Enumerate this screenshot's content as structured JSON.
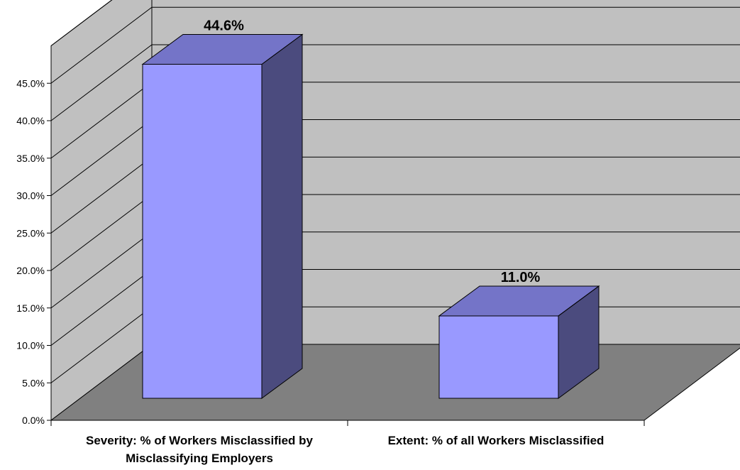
{
  "chart_data": {
    "type": "bar",
    "style": "3d-column",
    "categories": [
      [
        "Severity: % of Workers Misclassified by",
        "Misclassifying Employers"
      ],
      [
        "Extent: % of all Workers Misclassified"
      ]
    ],
    "values": [
      44.6,
      11.0
    ],
    "data_labels": [
      "44.6%",
      "11.0%"
    ],
    "y_ticks": [
      "0.0%",
      "5.0%",
      "10.0%",
      "15.0%",
      "20.0%",
      "25.0%",
      "30.0%",
      "35.0%",
      "40.0%",
      "45.0%"
    ],
    "ylim": [
      0,
      50
    ],
    "grid": true,
    "legend": "none",
    "colors": {
      "bar_front": "#9999FF",
      "bar_top": "#7474C8",
      "bar_side": "#4B4B7E",
      "back_wall": "#C0C0C0",
      "side_wall": "#C0C0C0",
      "floor": "#808080"
    }
  }
}
